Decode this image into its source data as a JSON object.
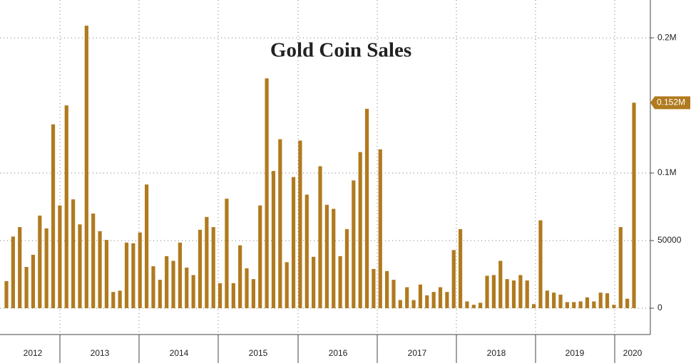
{
  "chart_data": {
    "type": "bar",
    "title": "Gold Coin Sales",
    "categories": [
      null,
      null,
      null,
      null,
      null,
      null,
      null,
      null,
      null,
      null,
      null,
      null,
      null,
      null,
      null,
      null,
      null,
      null,
      null,
      null,
      null,
      null,
      null,
      null,
      null,
      null,
      null,
      null,
      null,
      null,
      null,
      null,
      null,
      null,
      null,
      null,
      null,
      null,
      null,
      null,
      null,
      null,
      null,
      null,
      null,
      null,
      null,
      null,
      null,
      null,
      null,
      null,
      null,
      null,
      null,
      null,
      null,
      null,
      null,
      null,
      null,
      null,
      null,
      null,
      null,
      null,
      null,
      null,
      null,
      null,
      null,
      null,
      null,
      null,
      null,
      null,
      null,
      null,
      null,
      null,
      null,
      null,
      null,
      null,
      null,
      null,
      null,
      null,
      null,
      null,
      null,
      null,
      null,
      null,
      null
    ],
    "values": [
      20000,
      53000,
      60000,
      30500,
      39500,
      68500,
      59000,
      136000,
      76000,
      150000,
      80500,
      62000,
      209000,
      70000,
      57000,
      50500,
      12000,
      13000,
      48500,
      48000,
      56000,
      91500,
      31000,
      21000,
      38500,
      35000,
      48500,
      30000,
      24500,
      58000,
      67500,
      60000,
      18500,
      81000,
      18500,
      46500,
      29500,
      21500,
      76000,
      170000,
      101500,
      125000,
      34000,
      97000,
      124000,
      84000,
      38000,
      105000,
      76500,
      73500,
      38500,
      58500,
      94500,
      115500,
      147500,
      29000,
      117500,
      27500,
      21000,
      6000,
      15500,
      6000,
      17500,
      9500,
      12000,
      15500,
      12000,
      43000,
      58500,
      5000,
      2500,
      4000,
      24000,
      24500,
      35000,
      21500,
      20500,
      24500,
      20500,
      3000,
      65000,
      13000,
      11500,
      10000,
      4500,
      4500,
      5000,
      8000,
      5000,
      11500,
      11000,
      2500,
      60000,
      7000,
      152000
    ],
    "color": "#b07a1f",
    "x_axis_labels": [
      "2012",
      "2013",
      "2014",
      "2015",
      "2016",
      "2017",
      "2018",
      "2019",
      "2020"
    ],
    "last_value_label": "0.152M",
    "ylim": [
      -19500,
      228000
    ],
    "yticks": [
      0,
      50000,
      {
        "value": 100000,
        "label": "0.1M"
      },
      {
        "value": 200000,
        "label": "0.2M"
      }
    ],
    "grid": true
  }
}
